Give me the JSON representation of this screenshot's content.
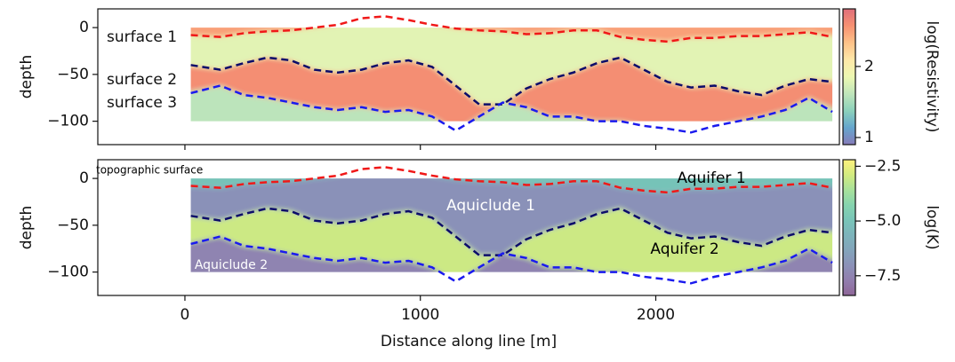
{
  "chart_data": [
    {
      "type": "layered-section",
      "ylabel": "depth",
      "ylim": [
        -125,
        20
      ],
      "yticks": [
        0,
        {
          "value": -50,
          "label": "−50"
        },
        {
          "value": -100,
          "label": "−100"
        }
      ],
      "xlim": [
        -370,
        2780
      ],
      "xticks": [
        0,
        1000,
        2000
      ],
      "image_extent": [
        25,
        2750,
        -100,
        0
      ],
      "x": [
        25,
        150,
        250,
        350,
        450,
        550,
        650,
        750,
        850,
        950,
        1050,
        1150,
        1250,
        1350,
        1450,
        1550,
        1650,
        1750,
        1850,
        1950,
        2050,
        2150,
        2250,
        2350,
        2450,
        2550,
        2650,
        2750
      ],
      "series": [
        {
          "name": "surface 1",
          "color": "#f01818",
          "values": [
            -8,
            -10,
            -6,
            -4,
            -3,
            0,
            3,
            10,
            12,
            8,
            3,
            -1,
            -3,
            -4,
            -7,
            -6,
            -3,
            -3,
            -10,
            -13,
            -15,
            -11,
            -11,
            -9,
            -9,
            -7,
            -5,
            -10
          ]
        },
        {
          "name": "surface 2",
          "color": "#0c0c6a",
          "values": [
            -40,
            -45,
            -38,
            -32,
            -35,
            -45,
            -48,
            -45,
            -38,
            -35,
            -42,
            -62,
            -82,
            -82,
            -65,
            -55,
            -48,
            -38,
            -32,
            -45,
            -58,
            -64,
            -62,
            -68,
            -72,
            -62,
            -55,
            -58
          ]
        },
        {
          "name": "surface 3",
          "color": "#1a1aee",
          "values": [
            -70,
            -62,
            -72,
            -75,
            -80,
            -85,
            -88,
            -85,
            -90,
            -88,
            -95,
            -110,
            -95,
            -80,
            -85,
            -95,
            -95,
            -100,
            -100,
            -105,
            -108,
            -112,
            -105,
            -100,
            -95,
            -88,
            -75,
            -90
          ]
        }
      ],
      "layers": [
        {
          "value": 2.5
        },
        {
          "value": 1.8
        },
        {
          "value": 2.6
        },
        {
          "value": 1.6
        }
      ],
      "colorbar": {
        "label": "log(Resistivity)",
        "lim": [
          0.9,
          2.81
        ],
        "ticks": [
          1,
          2
        ],
        "opacity": 0.75,
        "colors": [
          "#5e4fa2",
          "#3288bd",
          "#66c2a5",
          "#abdda4",
          "#e6f598",
          "#fee08b",
          "#fdae61",
          "#f46d43",
          "#d53e4f"
        ]
      }
    },
    {
      "type": "layered-section",
      "ylabel": "depth",
      "xlabel": "Distance along line [m]",
      "ylim": [
        -125,
        20
      ],
      "yticks": [
        0,
        {
          "value": -50,
          "label": "−50"
        },
        {
          "value": -100,
          "label": "−100"
        }
      ],
      "xlim": [
        -370,
        2780
      ],
      "xticks": [
        0,
        1000,
        2000
      ],
      "image_extent": [
        25,
        2750,
        -100,
        0
      ],
      "x": [
        25,
        150,
        250,
        350,
        450,
        550,
        650,
        750,
        850,
        950,
        1050,
        1150,
        1250,
        1350,
        1450,
        1550,
        1650,
        1750,
        1850,
        1950,
        2050,
        2150,
        2250,
        2350,
        2450,
        2550,
        2650,
        2750
      ],
      "series": [
        {
          "color": "#f01818",
          "values": [
            -8,
            -10,
            -6,
            -4,
            -3,
            0,
            3,
            10,
            12,
            8,
            3,
            -1,
            -3,
            -4,
            -7,
            -6,
            -3,
            -3,
            -10,
            -13,
            -15,
            -11,
            -11,
            -9,
            -9,
            -7,
            -5,
            -10
          ]
        },
        {
          "color": "#0c0c6a",
          "values": [
            -40,
            -45,
            -38,
            -32,
            -35,
            -45,
            -48,
            -45,
            -38,
            -35,
            -42,
            -62,
            -82,
            -82,
            -65,
            -55,
            -48,
            -38,
            -32,
            -45,
            -58,
            -64,
            -62,
            -68,
            -72,
            -62,
            -55,
            -58
          ]
        },
        {
          "color": "#1a1aee",
          "values": [
            -70,
            -62,
            -72,
            -75,
            -80,
            -85,
            -88,
            -85,
            -90,
            -88,
            -95,
            -110,
            -95,
            -80,
            -85,
            -95,
            -95,
            -100,
            -100,
            -105,
            -108,
            -112,
            -105,
            -100,
            -95,
            -88,
            -75,
            -90
          ]
        }
      ],
      "layers": [
        {
          "value": -5.0
        },
        {
          "value": -7.0
        },
        {
          "value": -3.0
        },
        {
          "value": -7.5
        }
      ],
      "annotations": [
        {
          "text": "topographic surface",
          "color": "#000000"
        },
        {
          "text": "Aquifer 1",
          "color": "#000000"
        },
        {
          "text": "Aquiclude 1",
          "color": "#ffffff"
        },
        {
          "text": "Aquifer 2",
          "color": "#000000"
        },
        {
          "text": "Aquiclude 2",
          "color": "#ffffff"
        }
      ],
      "colorbar": {
        "label": "log(K)",
        "lim": [
          -8.4,
          -2.2
        ],
        "opacity": 0.6,
        "ticks": [
          {
            "value": -2.5,
            "label": "−2.5"
          },
          {
            "value": -5.0,
            "label": "−5.0"
          },
          {
            "value": -7.5,
            "label": "−7.5"
          }
        ],
        "colors": [
          "#440154",
          "#482878",
          "#3e4989",
          "#31688e",
          "#26828e",
          "#1f9e89",
          "#35b779",
          "#6ece58",
          "#b5de2b",
          "#fde725"
        ]
      }
    }
  ]
}
